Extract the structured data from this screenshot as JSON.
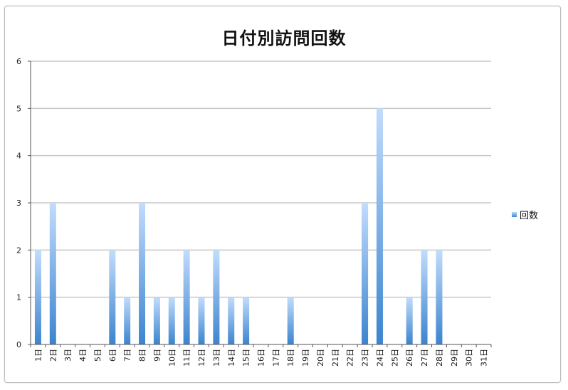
{
  "chart_data": {
    "type": "bar",
    "title": "日付別訪問回数",
    "xlabel": "",
    "ylabel": "",
    "ylim": [
      0,
      6
    ],
    "yticks": [
      "0",
      "1",
      "2",
      "3",
      "4",
      "5",
      "6"
    ],
    "grid": true,
    "legend_position": "right",
    "categories": [
      "1日",
      "2日",
      "3日",
      "4日",
      "5日",
      "6日",
      "7日",
      "8日",
      "9日",
      "10日",
      "11日",
      "12日",
      "13日",
      "14日",
      "15日",
      "16日",
      "17日",
      "18日",
      "19日",
      "20日",
      "21日",
      "22日",
      "23日",
      "24日",
      "25日",
      "26日",
      "27日",
      "28日",
      "29日",
      "30日",
      "31日"
    ],
    "series": [
      {
        "name": "回数",
        "color": "#4a8fd6",
        "values": [
          2,
          3,
          0,
          0,
          0,
          2,
          1,
          3,
          1,
          1,
          2,
          1,
          2,
          1,
          1,
          0,
          0,
          1,
          0,
          0,
          0,
          0,
          3,
          5,
          0,
          1,
          2,
          2,
          0,
          0,
          0
        ]
      }
    ]
  }
}
